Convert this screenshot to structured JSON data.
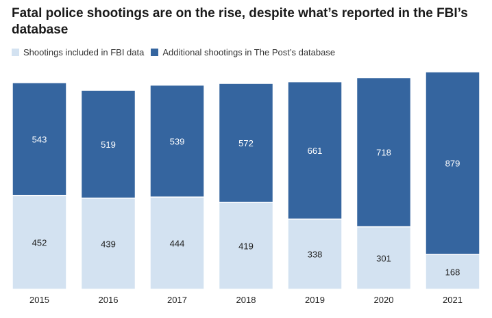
{
  "chart_data": {
    "type": "bar",
    "stacked": true,
    "title": "Fatal police shootings are on the rise, despite what’s reported in the FBI’s database",
    "categories": [
      "2015",
      "2016",
      "2017",
      "2018",
      "2019",
      "2020",
      "2021"
    ],
    "series": [
      {
        "name": "Shootings included in FBI data",
        "color": "#d3e2f1",
        "label_color": "#222222",
        "values": [
          452,
          439,
          444,
          419,
          338,
          301,
          168
        ]
      },
      {
        "name": "Additional shootings in The Post’s database",
        "color": "#35659f",
        "label_color": "#ffffff",
        "values": [
          543,
          519,
          539,
          572,
          661,
          718,
          879
        ]
      }
    ],
    "ylim": [
      0,
      1047
    ],
    "legend_position": "top-left",
    "grid": false
  }
}
